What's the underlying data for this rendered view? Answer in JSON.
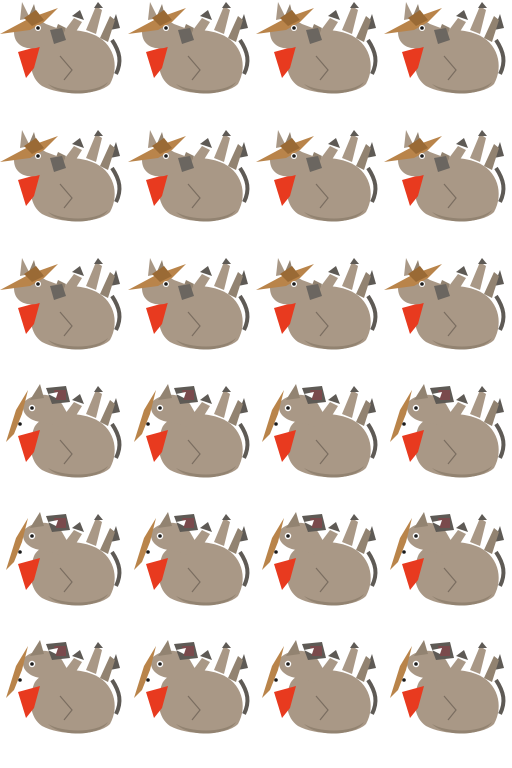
{
  "sprite_sheet": {
    "subject": "donkey",
    "columns": 4,
    "rows": 6,
    "colors": {
      "body": "#a99886",
      "body_shadow": "#928371",
      "outline": "#7a6d60",
      "dark": "#5e5a55",
      "muzzle": "#6b6660",
      "scarf": "#e83a1f",
      "hat": "#b9844a",
      "hat_band": "#9a6a35",
      "eye": "#1a1a1a",
      "eye_white": "#ffffff",
      "tongue": "#7a4a4c"
    },
    "rows_data": [
      {
        "pose": "hat-on-head"
      },
      {
        "pose": "hat-on-head"
      },
      {
        "pose": "hat-on-head"
      },
      {
        "pose": "hat-falling"
      },
      {
        "pose": "hat-falling"
      },
      {
        "pose": "hat-falling"
      }
    ]
  }
}
